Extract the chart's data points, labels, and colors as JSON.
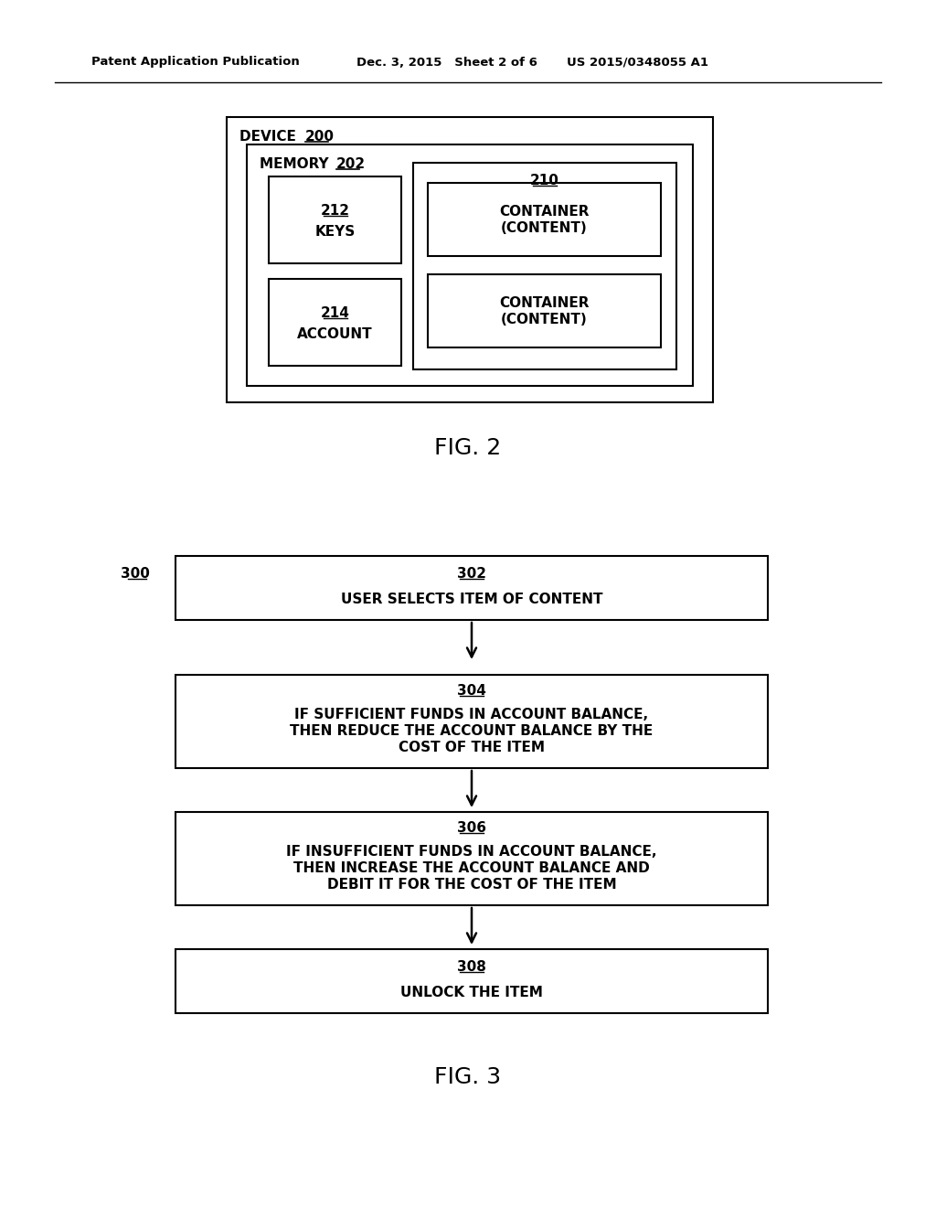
{
  "bg_color": "#ffffff",
  "header_text_left": "Patent Application Publication",
  "header_text_mid": "Dec. 3, 2015   Sheet 2 of 6",
  "header_text_right": "US 2015/0348055 A1",
  "fig2_label": "FIG. 2",
  "fig3_label": "FIG. 3",
  "device_word": "DEVICE",
  "device_num": "200",
  "memory_word": "MEMORY",
  "memory_num": "202",
  "keys_num": "212",
  "keys_text": "KEYS",
  "account_num": "214",
  "account_text": "ACCOUNT",
  "container_group_num": "210",
  "container1_line1": "CONTAINER",
  "container1_line2": "(CONTENT)",
  "container2_line1": "CONTAINER",
  "container2_line2": "(CONTENT)",
  "flow_label": "300",
  "box302_num": "302",
  "box302_text": "USER SELECTS ITEM OF CONTENT",
  "box304_num": "304",
  "box304_line1": "IF SUFFICIENT FUNDS IN ACCOUNT BALANCE,",
  "box304_line2": "THEN REDUCE THE ACCOUNT BALANCE BY THE",
  "box304_line3": "COST OF THE ITEM",
  "box306_num": "306",
  "box306_line1": "IF INSUFFICIENT FUNDS IN ACCOUNT BALANCE,",
  "box306_line2": "THEN INCREASE THE ACCOUNT BALANCE AND",
  "box306_line3": "DEBIT IT FOR THE COST OF THE ITEM",
  "box308_num": "308",
  "box308_text": "UNLOCK THE ITEM",
  "font_family": "DejaVu Sans",
  "line_color": "#000000",
  "text_color": "#000000"
}
